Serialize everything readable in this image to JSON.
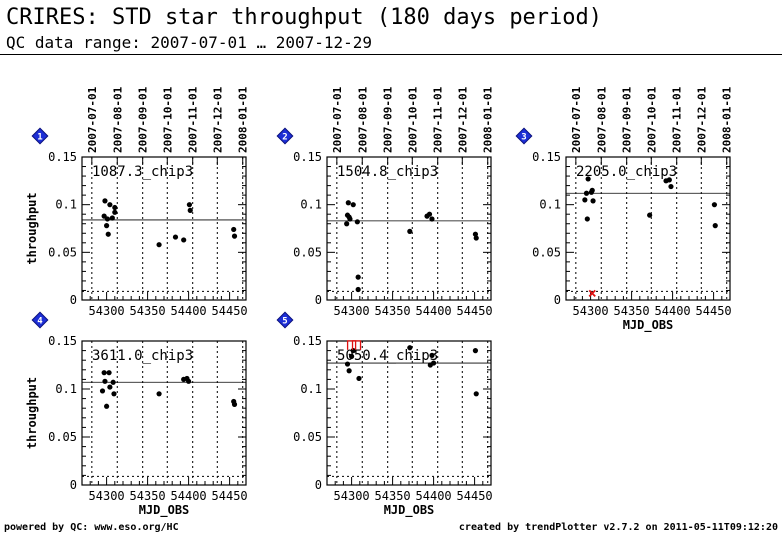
{
  "header": {
    "title": "CRIRES: STD star throughput (180 days period)",
    "subtitle": "QC data range: 2007-07-01 … 2007-12-29"
  },
  "footer": {
    "left": "powered by QC: www.eso.org/HC",
    "right": "created by trendPlotter v2.7.2 on 2011-05-11T09:12:20"
  },
  "chart_data": [
    {
      "type": "scatter",
      "panel": "1",
      "label": "1087.3_chip3",
      "xlabel": "",
      "ylabel": "throughput",
      "xlim": [
        54270,
        54470
      ],
      "ylim": [
        0,
        0.15
      ],
      "xticks": [
        "54300",
        "54350",
        "54400",
        "54450"
      ],
      "yticks": [
        "0",
        "0.05",
        "0.1",
        "0.15"
      ],
      "date_ticks": [
        "2007-07-01",
        "2007-08-01",
        "2007-09-01",
        "2007-10-01",
        "2007-11-01",
        "2007-12-01",
        "2008-01-01"
      ],
      "ref_line": 0.084,
      "points": [
        [
          54297,
          0.088
        ],
        [
          54298,
          0.104
        ],
        [
          54300,
          0.078
        ],
        [
          54301,
          0.085
        ],
        [
          54302,
          0.069
        ],
        [
          54304,
          0.1
        ],
        [
          54307,
          0.086
        ],
        [
          54310,
          0.092
        ],
        [
          54310,
          0.097
        ],
        [
          54364,
          0.058
        ],
        [
          54384,
          0.066
        ],
        [
          54394,
          0.063
        ],
        [
          54401,
          0.1
        ],
        [
          54402,
          0.094
        ],
        [
          54455,
          0.074
        ],
        [
          54456,
          0.067
        ]
      ],
      "outliers": []
    },
    {
      "type": "scatter",
      "panel": "2",
      "label": "1504.8_chip3",
      "xlabel": "",
      "ylabel": "",
      "xlim": [
        54270,
        54470
      ],
      "ylim": [
        0,
        0.15
      ],
      "xticks": [
        "54300",
        "54350",
        "54400",
        "54450"
      ],
      "yticks": [
        "0",
        "0.05",
        "0.1",
        "0.15"
      ],
      "date_ticks": [
        "2007-07-01",
        "2007-08-01",
        "2007-09-01",
        "2007-10-01",
        "2007-11-01",
        "2007-12-01",
        "2008-01-01"
      ],
      "ref_line": 0.083,
      "points": [
        [
          54294,
          0.08
        ],
        [
          54295,
          0.089
        ],
        [
          54296,
          0.102
        ],
        [
          54297,
          0.087
        ],
        [
          54298,
          0.085
        ],
        [
          54302,
          0.1
        ],
        [
          54307,
          0.082
        ],
        [
          54308,
          0.024
        ],
        [
          54308,
          0.011
        ],
        [
          54371,
          0.072
        ],
        [
          54392,
          0.088
        ],
        [
          54395,
          0.09
        ],
        [
          54398,
          0.085
        ],
        [
          54451,
          0.069
        ],
        [
          54452,
          0.065
        ]
      ],
      "outliers": []
    },
    {
      "type": "scatter",
      "panel": "3",
      "label": "2205.0_chip3",
      "xlabel": "MJD_OBS",
      "ylabel": "",
      "xlim": [
        54270,
        54470
      ],
      "ylim": [
        0,
        0.15
      ],
      "xticks": [
        "54300",
        "54350",
        "54400",
        "54450"
      ],
      "yticks": [
        "0",
        "0.05",
        "0.1",
        "0.15"
      ],
      "date_ticks": [
        "2007-07-01",
        "2007-08-01",
        "2007-09-01",
        "2007-10-01",
        "2007-11-01",
        "2007-12-01",
        "2008-01-01"
      ],
      "ref_line": 0.112,
      "points": [
        [
          54293,
          0.105
        ],
        [
          54295,
          0.112
        ],
        [
          54296,
          0.085
        ],
        [
          54297,
          0.127
        ],
        [
          54301,
          0.113
        ],
        [
          54302,
          0.115
        ],
        [
          54303,
          0.104
        ],
        [
          54372,
          0.089
        ],
        [
          54392,
          0.125
        ],
        [
          54396,
          0.126
        ],
        [
          54398,
          0.119
        ],
        [
          54451,
          0.1
        ],
        [
          54452,
          0.078
        ]
      ],
      "outliers": [
        [
          54302,
          0.007
        ]
      ]
    },
    {
      "type": "scatter",
      "panel": "4",
      "label": "3611.0_chip3",
      "xlabel": "MJD_OBS",
      "ylabel": "throughput",
      "xlim": [
        54270,
        54470
      ],
      "ylim": [
        0,
        0.15
      ],
      "xticks": [
        "54300",
        "54350",
        "54400",
        "54450"
      ],
      "yticks": [
        "0",
        "0.05",
        "0.1",
        "0.15"
      ],
      "date_ticks": [],
      "ref_line": 0.107,
      "points": [
        [
          54295,
          0.098
        ],
        [
          54297,
          0.117
        ],
        [
          54298,
          0.108
        ],
        [
          54300,
          0.082
        ],
        [
          54303,
          0.117
        ],
        [
          54304,
          0.102
        ],
        [
          54308,
          0.107
        ],
        [
          54309,
          0.095
        ],
        [
          54364,
          0.095
        ],
        [
          54394,
          0.11
        ],
        [
          54398,
          0.111
        ],
        [
          54400,
          0.108
        ],
        [
          54455,
          0.087
        ],
        [
          54456,
          0.084
        ]
      ],
      "outliers": []
    },
    {
      "type": "scatter",
      "panel": "5",
      "label": "5050.4_chip3",
      "xlabel": "MJD_OBS",
      "ylabel": "",
      "xlim": [
        54270,
        54470
      ],
      "ylim": [
        0,
        0.15
      ],
      "xticks": [
        "54300",
        "54350",
        "54400",
        "54450"
      ],
      "yticks": [
        "0",
        "0.05",
        "0.1",
        "0.15"
      ],
      "date_ticks": [],
      "ref_line": 0.127,
      "points": [
        [
          54295,
          0.126
        ],
        [
          54297,
          0.119
        ],
        [
          54300,
          0.134
        ],
        [
          54302,
          0.14
        ],
        [
          54309,
          0.111
        ],
        [
          54371,
          0.143
        ],
        [
          54396,
          0.125
        ],
        [
          54398,
          0.135
        ],
        [
          54400,
          0.127
        ],
        [
          54451,
          0.14
        ],
        [
          54452,
          0.095
        ]
      ],
      "outliers": [
        [
          54300,
          0.146
        ],
        [
          54306,
          0.146
        ]
      ]
    }
  ]
}
